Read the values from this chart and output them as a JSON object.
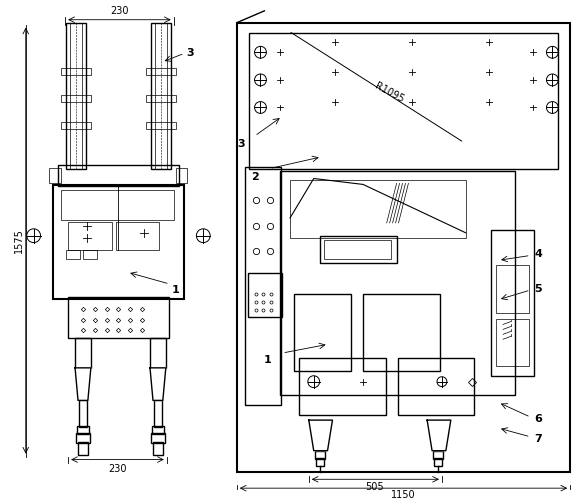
{
  "bg_color": "#ffffff",
  "line_color": "#000000",
  "dim_color": "#000000",
  "fig_width": 5.88,
  "fig_height": 5.01,
  "dpi": 100,
  "annotations": {
    "dim_230_top": "230",
    "dim_230_bot": "230",
    "dim_1575": "1575",
    "label_1": "1",
    "label_2": "2",
    "label_3_left": "3",
    "label_3_right": "3",
    "label_4": "4",
    "label_5": "5",
    "label_6": "6",
    "label_7": "7",
    "dim_505": "505",
    "dim_1150": "1150",
    "dim_R1095": "R1095"
  }
}
